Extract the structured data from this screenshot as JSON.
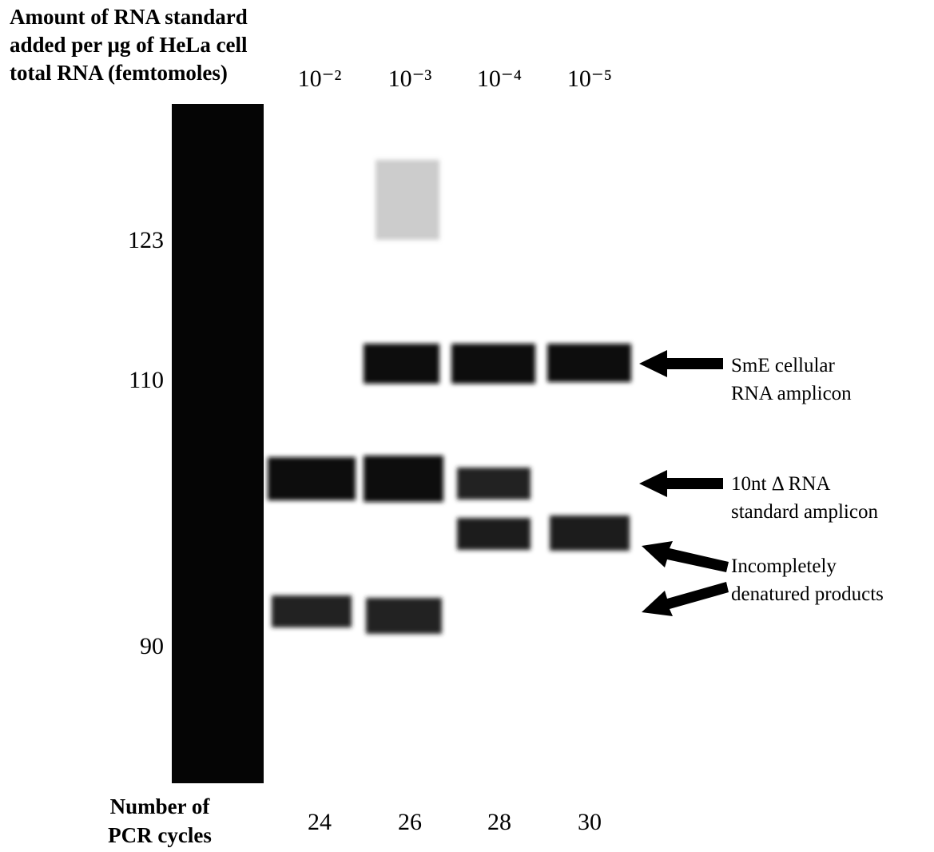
{
  "header": {
    "lines": [
      "Amount of RNA standard",
      "added per μg of HeLa cell",
      "total RNA (femtomoles)"
    ]
  },
  "lanes": [
    {
      "amount": "10⁻²",
      "cycles": "24"
    },
    {
      "amount": "10⁻³",
      "cycles": "26"
    },
    {
      "amount": "10⁻⁴",
      "cycles": "28"
    },
    {
      "amount": "10⁻⁵",
      "cycles": "30"
    }
  ],
  "markers": [
    "123",
    "110",
    "90"
  ],
  "annotations": [
    [
      "SmE cellular",
      "RNA amplicon"
    ],
    [
      "10nt Δ RNA",
      "standard amplicon"
    ],
    [
      "Incompletely",
      "denatured products"
    ]
  ],
  "footer": {
    "lines": [
      "Number of",
      "PCR cycles"
    ]
  }
}
